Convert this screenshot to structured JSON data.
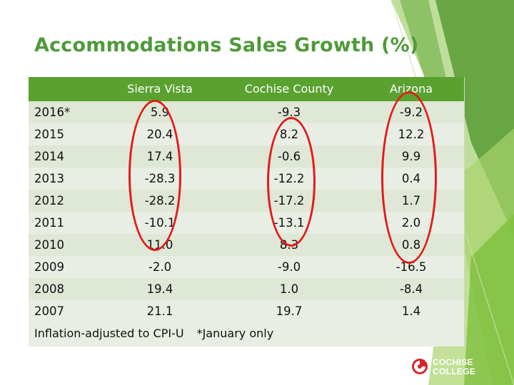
{
  "title": "Accommodations Sales Growth (%)",
  "table": {
    "headers": [
      "",
      "Sierra Vista",
      "Cochise County",
      "Arizona"
    ],
    "rows": [
      [
        "2016*",
        "5.9",
        "-9.3",
        "-9.2"
      ],
      [
        "2015",
        "20.4",
        "8.2",
        "12.2"
      ],
      [
        "2014",
        "17.4",
        "-0.6",
        "9.9"
      ],
      [
        "2013",
        "-28.3",
        "-12.2",
        "0.4"
      ],
      [
        "2012",
        "-28.2",
        "-17.2",
        "1.7"
      ],
      [
        "2011",
        "-10.1",
        "-13.1",
        "2.0"
      ],
      [
        "2010",
        "11.0",
        "8.3",
        "0.8"
      ],
      [
        "2009",
        "-2.0",
        "-9.0",
        "-16.5"
      ],
      [
        "2008",
        "19.4",
        "1.0",
        "-8.4"
      ],
      [
        "2007",
        "21.1",
        "19.7",
        "1.4"
      ]
    ]
  },
  "footer": {
    "note1": "Inflation-adjusted to CPI-U",
    "note2": "*January only"
  },
  "logo": {
    "line1": "COCHISE",
    "line2": "COLLEGE"
  },
  "colors": {
    "title": "#4f9a3a",
    "header_bg": "#5aa130",
    "accent_oval": "#e21b1b",
    "logo_red": "#d7262b"
  }
}
